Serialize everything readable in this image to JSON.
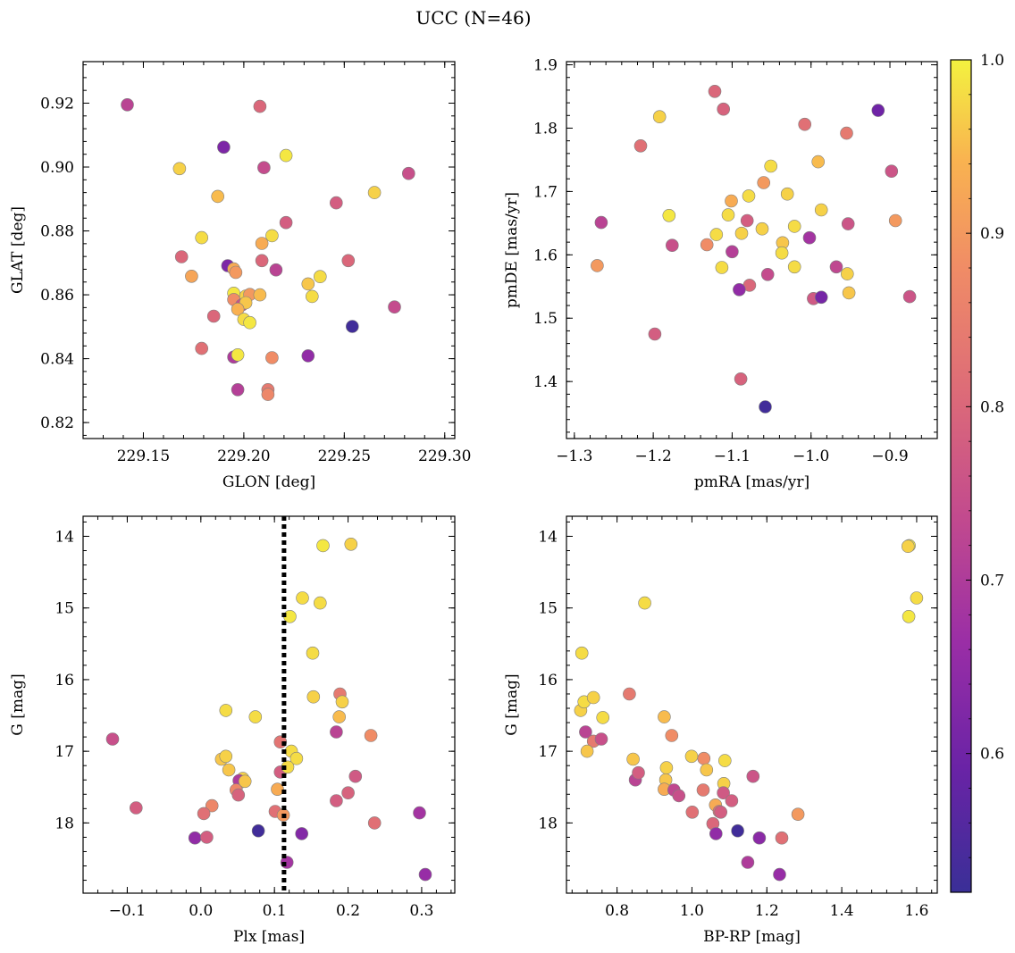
{
  "figure": {
    "title": "UCC (N=46)"
  },
  "colorbar": {
    "min": 0.52,
    "max": 1.0,
    "ticks": [
      0.6,
      0.7,
      0.8,
      0.9,
      1.0
    ],
    "tick_labels": [
      "0.6",
      "0.7",
      "0.8",
      "0.9",
      "1.0"
    ],
    "colormap": "plasma"
  },
  "chart_data": [
    {
      "type": "scatter",
      "id": "glon-glat",
      "xlabel": "GLON [deg]",
      "ylabel": "GLAT [deg]",
      "xlim": [
        229.12,
        229.305
      ],
      "ylim": [
        0.815,
        0.933
      ],
      "xticks": [
        229.15,
        229.2,
        229.25,
        229.3
      ],
      "xtick_labels": [
        "229.15",
        "229.20",
        "229.25",
        "229.30"
      ],
      "yticks": [
        0.82,
        0.84,
        0.86,
        0.88,
        0.9,
        0.92
      ],
      "ytick_labels": [
        "0.82",
        "0.84",
        "0.86",
        "0.88",
        "0.90",
        "0.92"
      ],
      "points": [
        [
          229.142,
          0.9195,
          0.72
        ],
        [
          229.208,
          0.919,
          0.8
        ],
        [
          229.19,
          0.9062,
          0.62
        ],
        [
          229.168,
          0.8995,
          0.97
        ],
        [
          229.21,
          0.8998,
          0.74
        ],
        [
          229.221,
          0.9036,
          0.99
        ],
        [
          229.282,
          0.898,
          0.75
        ],
        [
          229.265,
          0.892,
          0.97
        ],
        [
          229.187,
          0.8908,
          0.95
        ],
        [
          229.246,
          0.8888,
          0.78
        ],
        [
          229.221,
          0.8826,
          0.78
        ],
        [
          229.179,
          0.8779,
          0.98
        ],
        [
          229.214,
          0.8785,
          0.98
        ],
        [
          229.209,
          0.8761,
          0.93
        ],
        [
          229.169,
          0.8719,
          0.8
        ],
        [
          229.209,
          0.8707,
          0.8
        ],
        [
          229.252,
          0.8707,
          0.8
        ],
        [
          229.192,
          0.8691,
          0.62
        ],
        [
          229.174,
          0.8658,
          0.92
        ],
        [
          229.195,
          0.8681,
          0.93
        ],
        [
          229.196,
          0.867,
          0.9
        ],
        [
          229.216,
          0.8678,
          0.72
        ],
        [
          229.232,
          0.8634,
          0.96
        ],
        [
          229.238,
          0.8657,
          0.98
        ],
        [
          229.195,
          0.8605,
          0.99
        ],
        [
          229.201,
          0.8596,
          0.97
        ],
        [
          229.203,
          0.8601,
          0.9
        ],
        [
          229.195,
          0.8585,
          0.88
        ],
        [
          229.199,
          0.8568,
          0.75
        ],
        [
          229.201,
          0.8575,
          0.96
        ],
        [
          229.197,
          0.8555,
          0.94
        ],
        [
          229.234,
          0.8595,
          0.98
        ],
        [
          229.185,
          0.8533,
          0.8
        ],
        [
          229.2,
          0.8523,
          0.98
        ],
        [
          229.203,
          0.8513,
          0.99
        ],
        [
          229.254,
          0.8501,
          0.53
        ],
        [
          229.275,
          0.8562,
          0.74
        ],
        [
          229.179,
          0.8432,
          0.82
        ],
        [
          229.195,
          0.8405,
          0.7
        ],
        [
          229.197,
          0.8412,
          0.99
        ],
        [
          229.214,
          0.8403,
          0.88
        ],
        [
          229.232,
          0.8409,
          0.65
        ],
        [
          229.197,
          0.8303,
          0.71
        ],
        [
          229.212,
          0.8303,
          0.84
        ],
        [
          229.212,
          0.8288,
          0.87
        ],
        [
          229.208,
          0.86,
          0.95
        ]
      ]
    },
    {
      "type": "scatter",
      "id": "pmra-pmde",
      "xlabel": "pmRA [mas/yr]",
      "ylabel": "pmDE [mas/yr]",
      "xlim": [
        -1.31,
        -0.84
      ],
      "ylim": [
        1.31,
        1.905
      ],
      "xticks": [
        -1.3,
        -1.2,
        -1.1,
        -1.0,
        -0.9
      ],
      "xtick_labels": [
        "−1.3",
        "−1.2",
        "−1.1",
        "−1.0",
        "−0.9"
      ],
      "yticks": [
        1.4,
        1.5,
        1.6,
        1.7,
        1.8,
        1.9
      ],
      "ytick_labels": [
        "1.4",
        "1.5",
        "1.6",
        "1.7",
        "1.8",
        "1.9"
      ],
      "points": [
        [
          -1.122,
          1.858,
          0.8
        ],
        [
          -1.111,
          1.83,
          0.79
        ],
        [
          -1.192,
          1.818,
          0.97
        ],
        [
          -1.216,
          1.772,
          0.82
        ],
        [
          -1.008,
          1.806,
          0.82
        ],
        [
          -0.955,
          1.792,
          0.84
        ],
        [
          -0.915,
          1.828,
          0.6
        ],
        [
          -1.051,
          1.74,
          0.98
        ],
        [
          -0.991,
          1.747,
          0.95
        ],
        [
          -0.898,
          1.732,
          0.76
        ],
        [
          -1.06,
          1.714,
          0.9
        ],
        [
          -1.101,
          1.685,
          0.93
        ],
        [
          -1.079,
          1.693,
          0.98
        ],
        [
          -1.03,
          1.696,
          0.97
        ],
        [
          -1.266,
          1.651,
          0.72
        ],
        [
          -1.18,
          1.662,
          0.99
        ],
        [
          -1.105,
          1.663,
          0.98
        ],
        [
          -1.081,
          1.654,
          0.78
        ],
        [
          -1.12,
          1.632,
          0.98
        ],
        [
          -1.088,
          1.634,
          0.97
        ],
        [
          -1.062,
          1.641,
          0.97
        ],
        [
          -1.021,
          1.645,
          0.98
        ],
        [
          -0.987,
          1.671,
          0.97
        ],
        [
          -0.953,
          1.649,
          0.76
        ],
        [
          -0.893,
          1.654,
          0.9
        ],
        [
          -1.176,
          1.615,
          0.75
        ],
        [
          -1.132,
          1.616,
          0.88
        ],
        [
          -1.036,
          1.619,
          0.96
        ],
        [
          -1.002,
          1.627,
          0.68
        ],
        [
          -1.1,
          1.605,
          0.71
        ],
        [
          -1.037,
          1.603,
          0.98
        ],
        [
          -1.271,
          1.583,
          0.9
        ],
        [
          -1.113,
          1.58,
          0.98
        ],
        [
          -1.021,
          1.581,
          0.98
        ],
        [
          -0.968,
          1.581,
          0.73
        ],
        [
          -0.954,
          1.57,
          0.97
        ],
        [
          -1.055,
          1.569,
          0.74
        ],
        [
          -1.078,
          1.552,
          0.8
        ],
        [
          -1.091,
          1.545,
          0.65
        ],
        [
          -0.952,
          1.54,
          0.96
        ],
        [
          -0.997,
          1.531,
          0.77
        ],
        [
          -0.987,
          1.533,
          0.61
        ],
        [
          -0.875,
          1.534,
          0.76
        ],
        [
          -1.198,
          1.475,
          0.78
        ],
        [
          -1.089,
          1.404,
          0.79
        ],
        [
          -1.058,
          1.36,
          0.53
        ]
      ]
    },
    {
      "type": "scatter",
      "id": "plx-g",
      "xlabel": "Plx [mas]",
      "ylabel": "G [mag]",
      "xlim": [
        -0.16,
        0.345
      ],
      "ylim": [
        18.98,
        13.72
      ],
      "y_inverted": true,
      "xticks": [
        -0.1,
        0.0,
        0.1,
        0.2,
        0.3
      ],
      "xtick_labels": [
        "−0.1",
        "0.0",
        "0.1",
        "0.2",
        "0.3"
      ],
      "yticks": [
        14,
        15,
        16,
        17,
        18
      ],
      "ytick_labels": [
        "14",
        "15",
        "16",
        "17",
        "18"
      ],
      "vline": {
        "x": 0.113,
        "style": "dotted"
      },
      "points": [
        [
          0.166,
          14.13,
          0.99
        ],
        [
          0.204,
          14.11,
          0.97
        ],
        [
          0.138,
          14.86,
          0.98
        ],
        [
          0.162,
          14.93,
          0.98
        ],
        [
          0.121,
          15.12,
          0.99
        ],
        [
          0.152,
          15.63,
          0.98
        ],
        [
          0.153,
          16.24,
          0.97
        ],
        [
          0.189,
          16.2,
          0.84
        ],
        [
          0.192,
          16.31,
          0.97
        ],
        [
          0.034,
          16.43,
          0.98
        ],
        [
          0.074,
          16.52,
          0.98
        ],
        [
          0.188,
          16.52,
          0.95
        ],
        [
          0.184,
          16.73,
          0.72
        ],
        [
          0.231,
          16.78,
          0.88
        ],
        [
          -0.12,
          16.83,
          0.75
        ],
        [
          0.108,
          16.87,
          0.83
        ],
        [
          0.028,
          17.11,
          0.96
        ],
        [
          0.034,
          17.07,
          0.97
        ],
        [
          0.123,
          17.0,
          0.98
        ],
        [
          0.13,
          17.1,
          0.98
        ],
        [
          0.038,
          17.26,
          0.96
        ],
        [
          0.108,
          17.29,
          0.78
        ],
        [
          0.118,
          17.22,
          0.98
        ],
        [
          0.21,
          17.35,
          0.77
        ],
        [
          0.057,
          17.38,
          0.97
        ],
        [
          0.054,
          17.43,
          0.94
        ],
        [
          0.052,
          17.41,
          0.7
        ],
        [
          0.048,
          17.54,
          0.87
        ],
        [
          0.051,
          17.61,
          0.79
        ],
        [
          0.104,
          17.53,
          0.93
        ],
        [
          0.2,
          17.58,
          0.79
        ],
        [
          0.184,
          17.69,
          0.78
        ],
        [
          -0.088,
          17.79,
          0.78
        ],
        [
          0.015,
          17.76,
          0.87
        ],
        [
          0.004,
          17.87,
          0.82
        ],
        [
          0.101,
          17.84,
          0.82
        ],
        [
          0.112,
          17.89,
          0.9
        ],
        [
          0.236,
          18.0,
          0.82
        ],
        [
          0.297,
          17.86,
          0.68
        ],
        [
          -0.008,
          18.21,
          0.65
        ],
        [
          0.008,
          18.2,
          0.78
        ],
        [
          0.078,
          18.11,
          0.53
        ],
        [
          0.137,
          18.15,
          0.63
        ],
        [
          0.117,
          18.55,
          0.68
        ],
        [
          0.305,
          18.72,
          0.66
        ],
        [
          0.06,
          17.42,
          0.96
        ]
      ]
    },
    {
      "type": "scatter",
      "id": "bprp-g",
      "xlabel": "BP-RP [mag]",
      "ylabel": "G [mag]",
      "xlim": [
        0.665,
        1.655
      ],
      "ylim": [
        18.98,
        13.72
      ],
      "y_inverted": true,
      "xticks": [
        0.8,
        1.0,
        1.2,
        1.4,
        1.6
      ],
      "xtick_labels": [
        "0.8",
        "1.0",
        "1.2",
        "1.4",
        "1.6"
      ],
      "yticks": [
        14,
        15,
        16,
        17,
        18
      ],
      "ytick_labels": [
        "14",
        "15",
        "16",
        "17",
        "18"
      ],
      "points": [
        [
          1.58,
          14.13,
          0.99
        ],
        [
          1.577,
          14.14,
          0.97
        ],
        [
          1.6,
          14.86,
          0.98
        ],
        [
          1.579,
          15.12,
          0.99
        ],
        [
          0.874,
          14.93,
          0.98
        ],
        [
          0.706,
          15.63,
          0.98
        ],
        [
          0.833,
          16.2,
          0.84
        ],
        [
          0.703,
          16.43,
          0.97
        ],
        [
          0.712,
          16.31,
          0.98
        ],
        [
          0.737,
          16.25,
          0.97
        ],
        [
          0.762,
          16.53,
          0.98
        ],
        [
          0.926,
          16.52,
          0.95
        ],
        [
          0.946,
          16.78,
          0.88
        ],
        [
          0.716,
          16.73,
          0.72
        ],
        [
          0.737,
          16.86,
          0.84
        ],
        [
          0.758,
          16.83,
          0.75
        ],
        [
          0.72,
          17.0,
          0.96
        ],
        [
          0.843,
          17.11,
          0.96
        ],
        [
          0.999,
          17.07,
          0.97
        ],
        [
          1.032,
          17.1,
          0.88
        ],
        [
          1.088,
          17.13,
          0.98
        ],
        [
          0.849,
          17.4,
          0.72
        ],
        [
          0.857,
          17.3,
          0.78
        ],
        [
          0.932,
          17.23,
          0.97
        ],
        [
          0.93,
          17.4,
          0.96
        ],
        [
          0.926,
          17.53,
          0.93
        ],
        [
          0.952,
          17.54,
          0.73
        ],
        [
          0.965,
          17.62,
          0.75
        ],
        [
          1.039,
          17.26,
          0.96
        ],
        [
          1.085,
          17.45,
          0.97
        ],
        [
          1.03,
          17.54,
          0.84
        ],
        [
          1.084,
          17.58,
          0.77
        ],
        [
          1.106,
          17.69,
          0.78
        ],
        [
          1.163,
          17.35,
          0.76
        ],
        [
          1.063,
          17.75,
          0.93
        ],
        [
          1.073,
          17.84,
          0.82
        ],
        [
          1.077,
          17.85,
          0.78
        ],
        [
          1.001,
          17.85,
          0.82
        ],
        [
          1.056,
          18.01,
          0.8
        ],
        [
          1.283,
          17.88,
          0.9
        ],
        [
          1.064,
          18.15,
          0.65
        ],
        [
          1.122,
          18.11,
          0.53
        ],
        [
          1.18,
          18.21,
          0.64
        ],
        [
          1.24,
          18.21,
          0.82
        ],
        [
          1.149,
          18.55,
          0.7
        ],
        [
          1.234,
          18.72,
          0.66
        ]
      ]
    }
  ]
}
